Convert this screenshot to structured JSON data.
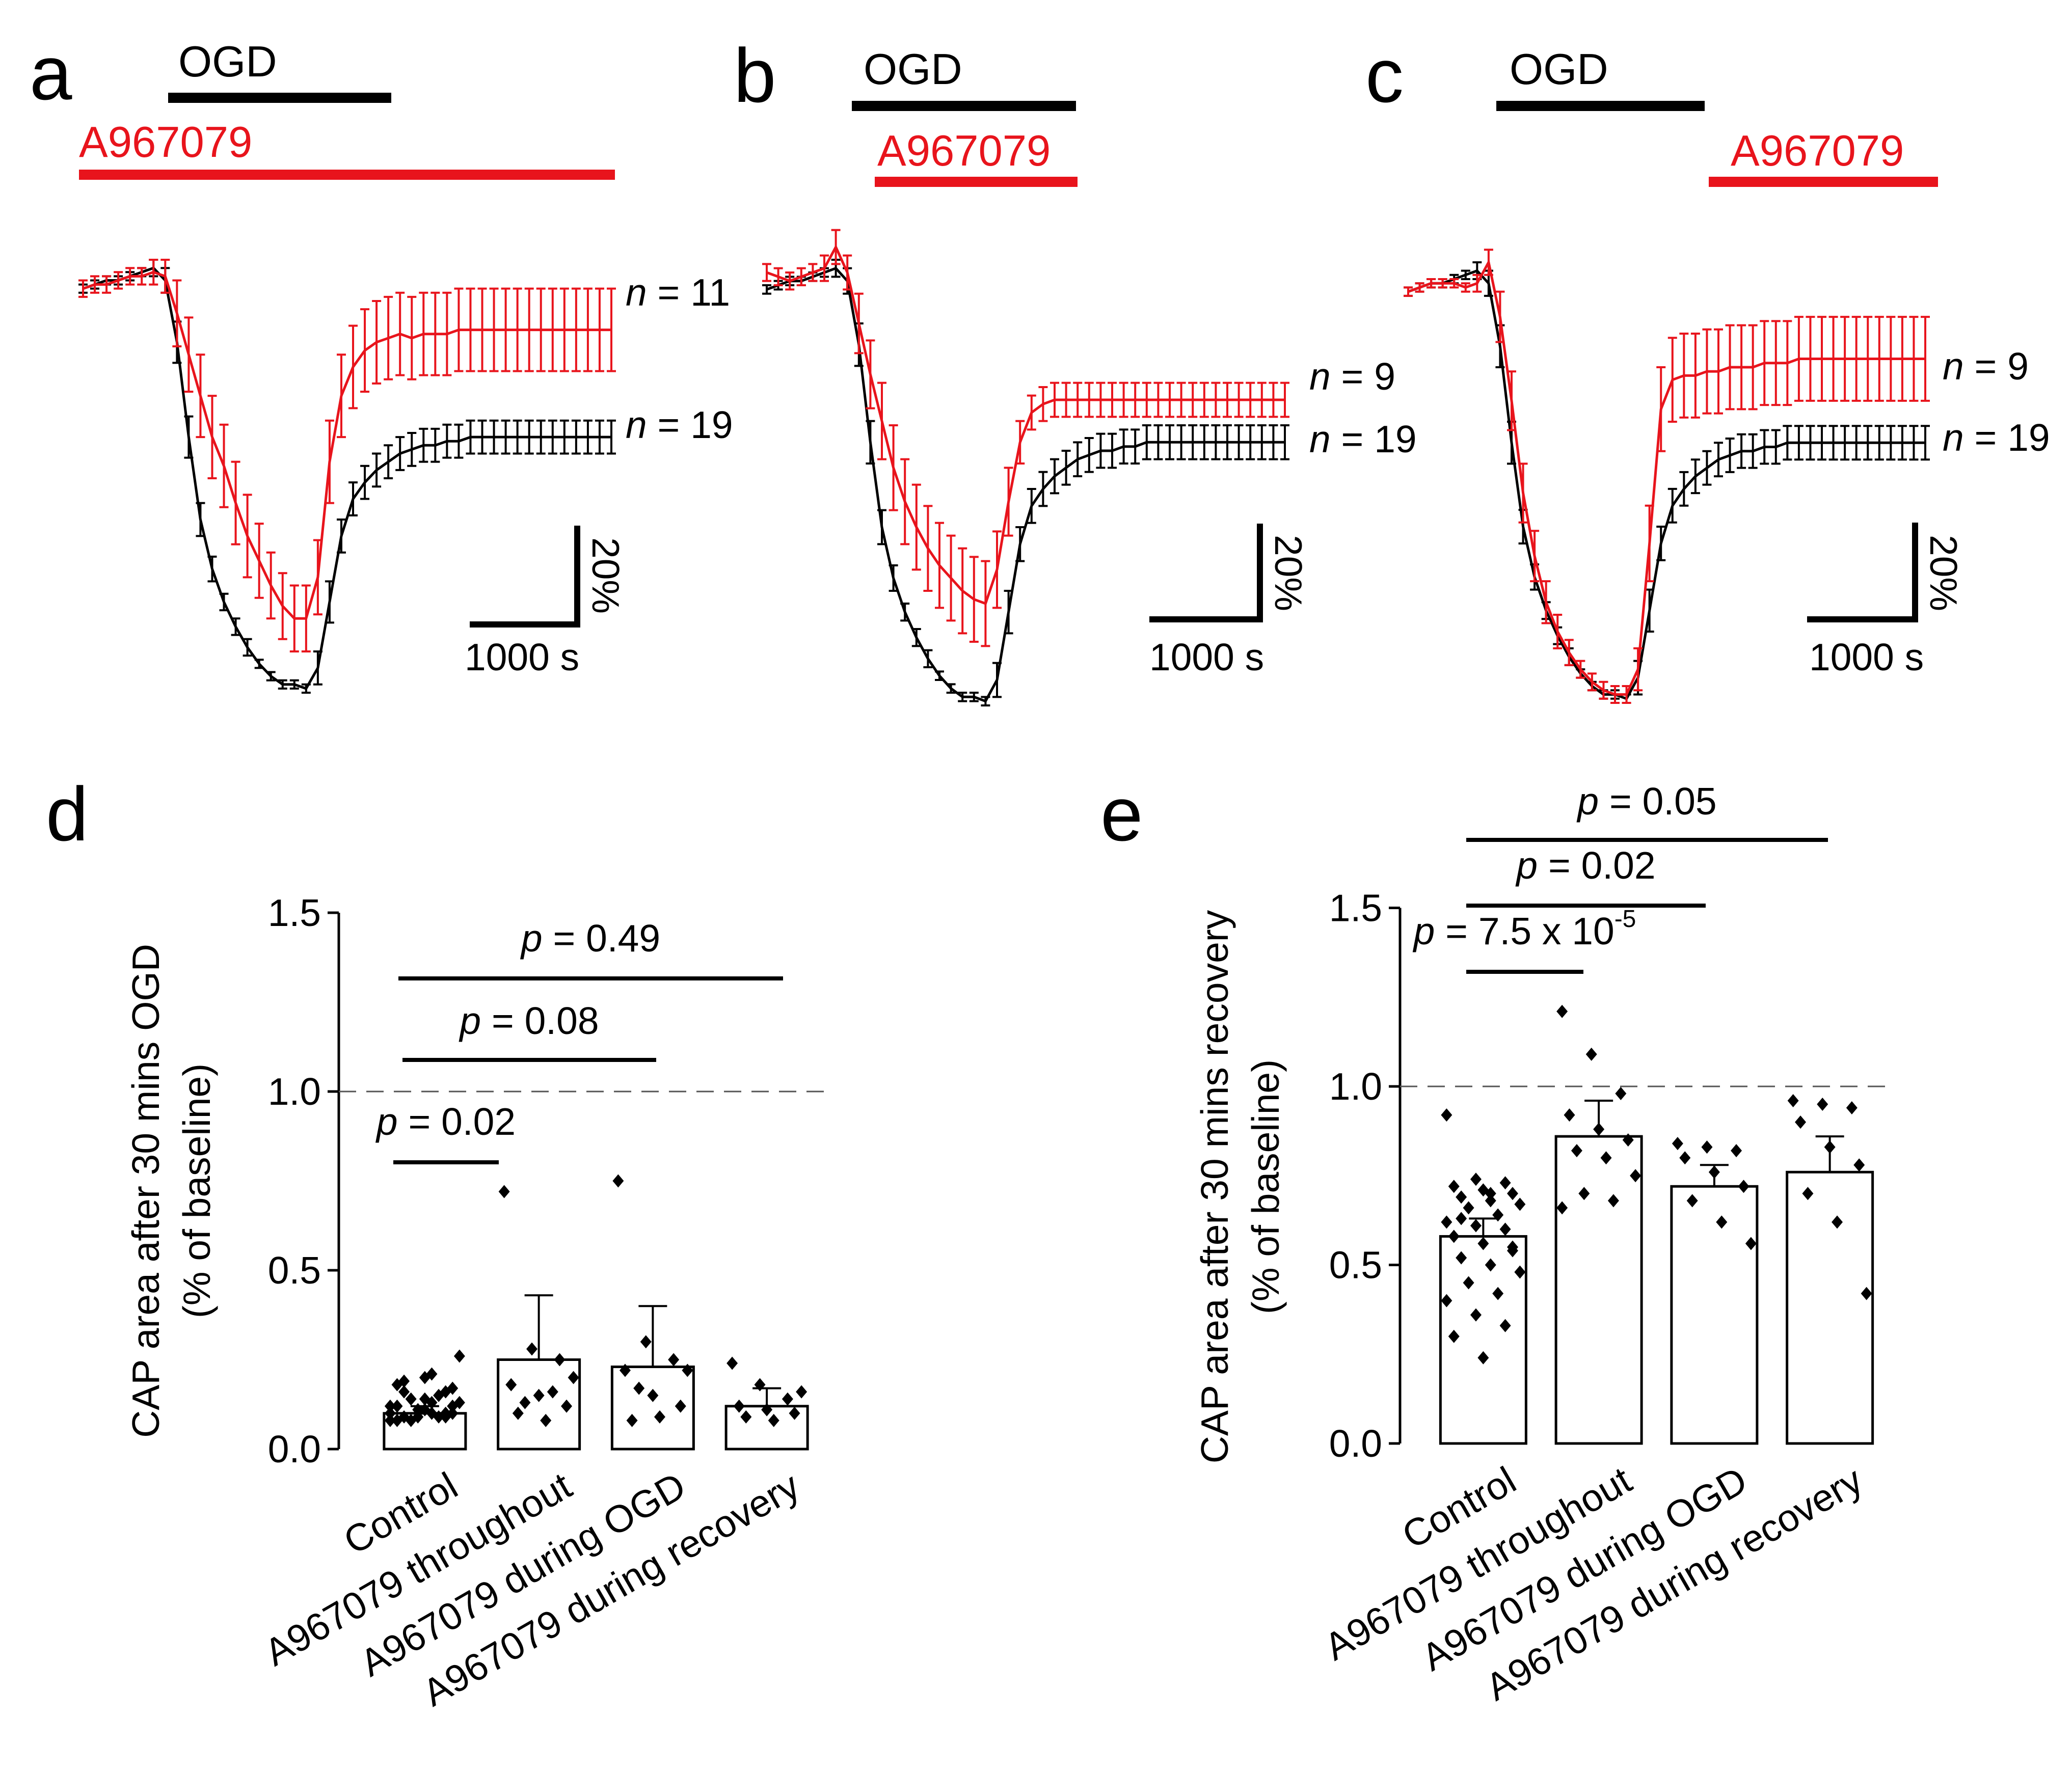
{
  "panels_top": [
    {
      "letter": "a",
      "ogd_label": "OGD",
      "drug_label": "A967079",
      "n_red": "n = 11",
      "n_black": "n = 19",
      "scale_y": "20%",
      "scale_x": "1000 s"
    },
    {
      "letter": "b",
      "ogd_label": "OGD",
      "drug_label": "A967079",
      "n_red": "n = 9",
      "n_black": "n = 19",
      "scale_y": "20%",
      "scale_x": "1000 s"
    },
    {
      "letter": "c",
      "ogd_label": "OGD",
      "drug_label": "A967079",
      "n_red": "n = 9",
      "n_black": "n = 19",
      "scale_y": "20%",
      "scale_x": "1000 s"
    }
  ],
  "panels_bottom": [
    {
      "letter": "d",
      "ylabel_line1": "CAP area after 30 mins OGD",
      "ylabel_line2": "(% of baseline)"
    },
    {
      "letter": "e",
      "ylabel_line1": "CAP area after 30 mins recovery",
      "ylabel_line2": "(% of baseline)"
    }
  ],
  "colors": {
    "control": "#000000",
    "drug": "#e8141c",
    "dash": "#555555"
  },
  "chart_data": [
    {
      "type": "line",
      "panel": "a",
      "x": [
        0,
        1,
        2,
        3,
        4,
        5,
        6,
        7,
        8,
        9,
        10,
        11,
        12,
        13,
        14,
        15,
        16,
        17,
        18,
        19,
        20,
        21,
        22,
        23,
        24,
        25,
        26,
        27,
        28,
        29,
        30,
        31,
        32,
        33,
        34,
        35,
        36,
        37,
        38,
        39,
        40,
        41,
        42,
        43,
        44,
        45
      ],
      "series": [
        {
          "name": "control",
          "color": "#000000",
          "values": [
            0.98,
            0.99,
            1.0,
            1.0,
            1.01,
            1.02,
            1.03,
            1.0,
            0.85,
            0.62,
            0.42,
            0.3,
            0.22,
            0.16,
            0.11,
            0.07,
            0.04,
            0.02,
            0.02,
            0.01,
            0.06,
            0.22,
            0.38,
            0.47,
            0.51,
            0.54,
            0.56,
            0.58,
            0.59,
            0.6,
            0.6,
            0.61,
            0.61,
            0.62,
            0.62,
            0.62,
            0.62,
            0.62,
            0.62,
            0.62,
            0.62,
            0.62,
            0.62,
            0.62,
            0.62,
            0.62
          ],
          "errors": [
            0.01,
            0.01,
            0.01,
            0.01,
            0.01,
            0.01,
            0.02,
            0.03,
            0.05,
            0.05,
            0.04,
            0.03,
            0.02,
            0.02,
            0.02,
            0.01,
            0.01,
            0.01,
            0.01,
            0.01,
            0.04,
            0.05,
            0.04,
            0.04,
            0.04,
            0.04,
            0.04,
            0.04,
            0.04,
            0.04,
            0.04,
            0.04,
            0.04,
            0.04,
            0.04,
            0.04,
            0.04,
            0.04,
            0.04,
            0.04,
            0.04,
            0.04,
            0.04,
            0.04,
            0.04,
            0.04
          ]
        },
        {
          "name": "A967079",
          "color": "#e8141c",
          "values": [
            0.98,
            0.99,
            0.99,
            1.0,
            1.01,
            1.01,
            1.02,
            1.01,
            0.92,
            0.82,
            0.72,
            0.62,
            0.55,
            0.46,
            0.38,
            0.32,
            0.26,
            0.21,
            0.18,
            0.18,
            0.28,
            0.56,
            0.72,
            0.79,
            0.83,
            0.85,
            0.86,
            0.87,
            0.86,
            0.87,
            0.87,
            0.87,
            0.88,
            0.88,
            0.88,
            0.88,
            0.88,
            0.88,
            0.88,
            0.88,
            0.88,
            0.88,
            0.88,
            0.88,
            0.88,
            0.88
          ],
          "errors": [
            0.02,
            0.02,
            0.02,
            0.02,
            0.02,
            0.02,
            0.03,
            0.04,
            0.08,
            0.09,
            0.1,
            0.1,
            0.1,
            0.1,
            0.1,
            0.09,
            0.08,
            0.08,
            0.08,
            0.08,
            0.09,
            0.1,
            0.1,
            0.1,
            0.1,
            0.1,
            0.1,
            0.1,
            0.1,
            0.1,
            0.1,
            0.1,
            0.1,
            0.1,
            0.1,
            0.1,
            0.1,
            0.1,
            0.1,
            0.1,
            0.1,
            0.1,
            0.1,
            0.1,
            0.1,
            0.1
          ]
        }
      ]
    },
    {
      "type": "line",
      "panel": "b",
      "x": [
        0,
        1,
        2,
        3,
        4,
        5,
        6,
        7,
        8,
        9,
        10,
        11,
        12,
        13,
        14,
        15,
        16,
        17,
        18,
        19,
        20,
        21,
        22,
        23,
        24,
        25,
        26,
        27,
        28,
        29,
        30,
        31,
        32,
        33,
        34,
        35,
        36,
        37,
        38,
        39,
        40,
        41,
        42,
        43,
        44,
        45
      ],
      "series": [
        {
          "name": "control",
          "color": "#000000",
          "values": [
            0.98,
            0.99,
            1.0,
            1.0,
            1.01,
            1.02,
            1.03,
            1.0,
            0.85,
            0.62,
            0.42,
            0.3,
            0.22,
            0.16,
            0.11,
            0.07,
            0.04,
            0.02,
            0.02,
            0.01,
            0.06,
            0.22,
            0.38,
            0.47,
            0.51,
            0.54,
            0.56,
            0.58,
            0.59,
            0.6,
            0.6,
            0.61,
            0.61,
            0.62,
            0.62,
            0.62,
            0.62,
            0.62,
            0.62,
            0.62,
            0.62,
            0.62,
            0.62,
            0.62,
            0.62,
            0.62
          ],
          "errors": [
            0.01,
            0.01,
            0.01,
            0.01,
            0.01,
            0.01,
            0.02,
            0.03,
            0.05,
            0.05,
            0.04,
            0.03,
            0.02,
            0.02,
            0.02,
            0.01,
            0.01,
            0.01,
            0.01,
            0.01,
            0.04,
            0.05,
            0.04,
            0.04,
            0.04,
            0.04,
            0.04,
            0.04,
            0.04,
            0.04,
            0.04,
            0.04,
            0.04,
            0.04,
            0.04,
            0.04,
            0.04,
            0.04,
            0.04,
            0.04,
            0.04,
            0.04,
            0.04,
            0.04,
            0.04,
            0.04
          ]
        },
        {
          "name": "A967079",
          "color": "#e8141c",
          "values": [
            1.02,
            1.01,
            1.0,
            1.01,
            1.02,
            1.03,
            1.08,
            1.02,
            0.9,
            0.78,
            0.67,
            0.56,
            0.48,
            0.42,
            0.37,
            0.33,
            0.3,
            0.27,
            0.25,
            0.24,
            0.32,
            0.48,
            0.62,
            0.69,
            0.71,
            0.72,
            0.72,
            0.72,
            0.72,
            0.72,
            0.72,
            0.72,
            0.72,
            0.72,
            0.72,
            0.72,
            0.72,
            0.72,
            0.72,
            0.72,
            0.72,
            0.72,
            0.72,
            0.72,
            0.72,
            0.72
          ],
          "errors": [
            0.02,
            0.02,
            0.02,
            0.02,
            0.02,
            0.03,
            0.04,
            0.04,
            0.07,
            0.08,
            0.09,
            0.1,
            0.1,
            0.1,
            0.1,
            0.1,
            0.1,
            0.1,
            0.1,
            0.1,
            0.09,
            0.08,
            0.05,
            0.04,
            0.04,
            0.04,
            0.04,
            0.04,
            0.04,
            0.04,
            0.04,
            0.04,
            0.04,
            0.04,
            0.04,
            0.04,
            0.04,
            0.04,
            0.04,
            0.04,
            0.04,
            0.04,
            0.04,
            0.04,
            0.04,
            0.04
          ]
        }
      ]
    },
    {
      "type": "line",
      "panel": "c",
      "x": [
        0,
        1,
        2,
        3,
        4,
        5,
        6,
        7,
        8,
        9,
        10,
        11,
        12,
        13,
        14,
        15,
        16,
        17,
        18,
        19,
        20,
        21,
        22,
        23,
        24,
        25,
        26,
        27,
        28,
        29,
        30,
        31,
        32,
        33,
        34,
        35,
        36,
        37,
        38,
        39,
        40,
        41,
        42,
        43,
        44,
        45
      ],
      "series": [
        {
          "name": "control",
          "color": "#000000",
          "values": [
            0.98,
            0.99,
            1.0,
            1.0,
            1.01,
            1.02,
            1.03,
            1.0,
            0.85,
            0.62,
            0.42,
            0.3,
            0.22,
            0.16,
            0.11,
            0.07,
            0.04,
            0.02,
            0.02,
            0.01,
            0.06,
            0.22,
            0.38,
            0.47,
            0.51,
            0.54,
            0.56,
            0.58,
            0.59,
            0.6,
            0.6,
            0.61,
            0.61,
            0.62,
            0.62,
            0.62,
            0.62,
            0.62,
            0.62,
            0.62,
            0.62,
            0.62,
            0.62,
            0.62,
            0.62,
            0.62
          ],
          "errors": [
            0.01,
            0.01,
            0.01,
            0.01,
            0.01,
            0.01,
            0.02,
            0.03,
            0.05,
            0.05,
            0.04,
            0.03,
            0.02,
            0.02,
            0.02,
            0.01,
            0.01,
            0.01,
            0.01,
            0.01,
            0.04,
            0.05,
            0.04,
            0.04,
            0.04,
            0.04,
            0.04,
            0.04,
            0.04,
            0.04,
            0.04,
            0.04,
            0.04,
            0.04,
            0.04,
            0.04,
            0.04,
            0.04,
            0.04,
            0.04,
            0.04,
            0.04,
            0.04,
            0.04,
            0.04,
            0.04
          ]
        },
        {
          "name": "A967079",
          "color": "#e8141c",
          "values": [
            0.98,
            0.99,
            1.0,
            1.0,
            1.0,
            0.99,
            1.0,
            1.05,
            0.92,
            0.72,
            0.5,
            0.35,
            0.24,
            0.17,
            0.12,
            0.08,
            0.05,
            0.03,
            0.02,
            0.02,
            0.08,
            0.38,
            0.7,
            0.77,
            0.78,
            0.78,
            0.79,
            0.79,
            0.8,
            0.8,
            0.8,
            0.81,
            0.81,
            0.81,
            0.82,
            0.82,
            0.82,
            0.82,
            0.82,
            0.82,
            0.82,
            0.82,
            0.82,
            0.82,
            0.82,
            0.82
          ],
          "errors": [
            0.01,
            0.01,
            0.01,
            0.01,
            0.01,
            0.01,
            0.02,
            0.03,
            0.06,
            0.07,
            0.07,
            0.06,
            0.05,
            0.04,
            0.03,
            0.02,
            0.02,
            0.02,
            0.02,
            0.02,
            0.05,
            0.09,
            0.1,
            0.1,
            0.1,
            0.1,
            0.1,
            0.1,
            0.1,
            0.1,
            0.1,
            0.1,
            0.1,
            0.1,
            0.1,
            0.1,
            0.1,
            0.1,
            0.1,
            0.1,
            0.1,
            0.1,
            0.1,
            0.1,
            0.1,
            0.1
          ]
        }
      ]
    },
    {
      "type": "bar",
      "panel": "d",
      "categories": [
        "Control",
        "A967079 throughout",
        "A967079 during OGD",
        "A967079 during recovery"
      ],
      "values": [
        0.1,
        0.25,
        0.23,
        0.12
      ],
      "errors": [
        0.02,
        0.18,
        0.17,
        0.05
      ],
      "points": [
        [
          0.08,
          0.09,
          0.1,
          0.08,
          0.11,
          0.12,
          0.09,
          0.1,
          0.13,
          0.14,
          0.15,
          0.12,
          0.11,
          0.16,
          0.18,
          0.2,
          0.17,
          0.19,
          0.21,
          0.26,
          0.08,
          0.09,
          0.1,
          0.11,
          0.09,
          0.12,
          0.14,
          0.1,
          0.16,
          0.13
        ],
        [
          0.72,
          0.28,
          0.25,
          0.18,
          0.15,
          0.12,
          0.1,
          0.08,
          0.2,
          0.13,
          0.16
        ],
        [
          0.75,
          0.3,
          0.25,
          0.22,
          0.15,
          0.12,
          0.08,
          0.09,
          0.22,
          0.17
        ],
        [
          0.24,
          0.18,
          0.14,
          0.12,
          0.11,
          0.1,
          0.09,
          0.08,
          0.16
        ]
      ],
      "ylim": [
        0,
        1.5
      ],
      "yticks": [
        "0.0",
        "0.5",
        "1.0",
        "1.5"
      ],
      "reference_line": 1.0,
      "comparisons": [
        {
          "label": "p = 0.02",
          "pval": "0.02",
          "from": 0,
          "to": 1
        },
        {
          "label": "p = 0.08",
          "pval": "0.08",
          "from": 0,
          "to": 2
        },
        {
          "label": "p = 0.49",
          "pval": "0.49",
          "from": 0,
          "to": 3
        }
      ]
    },
    {
      "type": "bar",
      "panel": "e",
      "categories": [
        "Control",
        "A967079 throughout",
        "A967079 during OGD",
        "A967079 during recovery"
      ],
      "values": [
        0.58,
        0.86,
        0.72,
        0.76
      ],
      "errors": [
        0.05,
        0.1,
        0.06,
        0.1
      ],
      "points": [
        [
          0.92,
          0.74,
          0.73,
          0.72,
          0.71,
          0.7,
          0.69,
          0.68,
          0.67,
          0.66,
          0.64,
          0.62,
          0.61,
          0.6,
          0.58,
          0.56,
          0.54,
          0.52,
          0.5,
          0.48,
          0.45,
          0.42,
          0.4,
          0.36,
          0.33,
          0.3,
          0.24,
          0.55,
          0.63,
          0.7
        ],
        [
          1.21,
          1.09,
          0.98,
          0.92,
          0.88,
          0.85,
          0.82,
          0.8,
          0.75,
          0.7,
          0.68,
          0.66
        ],
        [
          0.84,
          0.83,
          0.82,
          0.8,
          0.76,
          0.72,
          0.68,
          0.62,
          0.56
        ],
        [
          0.96,
          0.95,
          0.94,
          0.9,
          0.83,
          0.78,
          0.7,
          0.62,
          0.42
        ]
      ],
      "ylim": [
        0,
        1.5
      ],
      "yticks": [
        "0.0",
        "0.5",
        "1.0",
        "1.5"
      ],
      "reference_line": 1.0,
      "comparisons": [
        {
          "label": "p = 7.5 x 10",
          "pval": "7.5 x 10",
          "exp": "-5",
          "from": 0,
          "to": 1
        },
        {
          "label": "p = 0.02",
          "pval": "0.02",
          "from": 0,
          "to": 2
        },
        {
          "label": "p = 0.05",
          "pval": "0.05",
          "from": 0,
          "to": 3
        }
      ]
    }
  ]
}
